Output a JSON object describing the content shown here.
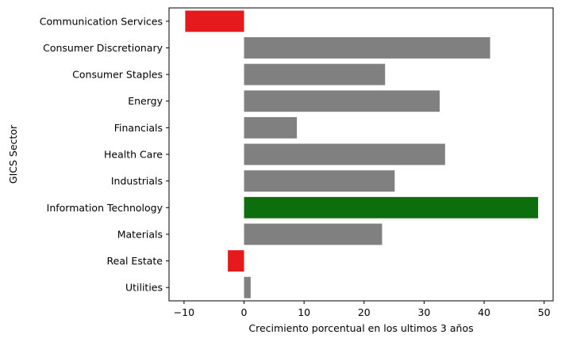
{
  "chart_data": {
    "type": "bar",
    "orientation": "horizontal",
    "categories": [
      "Communication Services",
      "Consumer Discretionary",
      "Consumer Staples",
      "Energy",
      "Financials",
      "Health Care",
      "Industrials",
      "Information Technology",
      "Materials",
      "Real Estate",
      "Utilities"
    ],
    "values": [
      -9.8,
      41.0,
      23.5,
      32.6,
      8.8,
      33.5,
      25.1,
      49.0,
      23.0,
      -2.7,
      1.1
    ],
    "bar_colors": [
      "#e41a1c",
      "#808080",
      "#808080",
      "#808080",
      "#808080",
      "#808080",
      "#808080",
      "#0d6e0d",
      "#808080",
      "#e41a1c",
      "#808080"
    ],
    "xlabel": "Crecimiento porcentual en los ultimos 3 años",
    "ylabel": "GICS Sector",
    "xlim": [
      -12.5,
      51.5
    ],
    "xticks": [
      -10,
      0,
      10,
      20,
      30,
      40,
      50
    ],
    "grid": false,
    "legend": "none"
  }
}
